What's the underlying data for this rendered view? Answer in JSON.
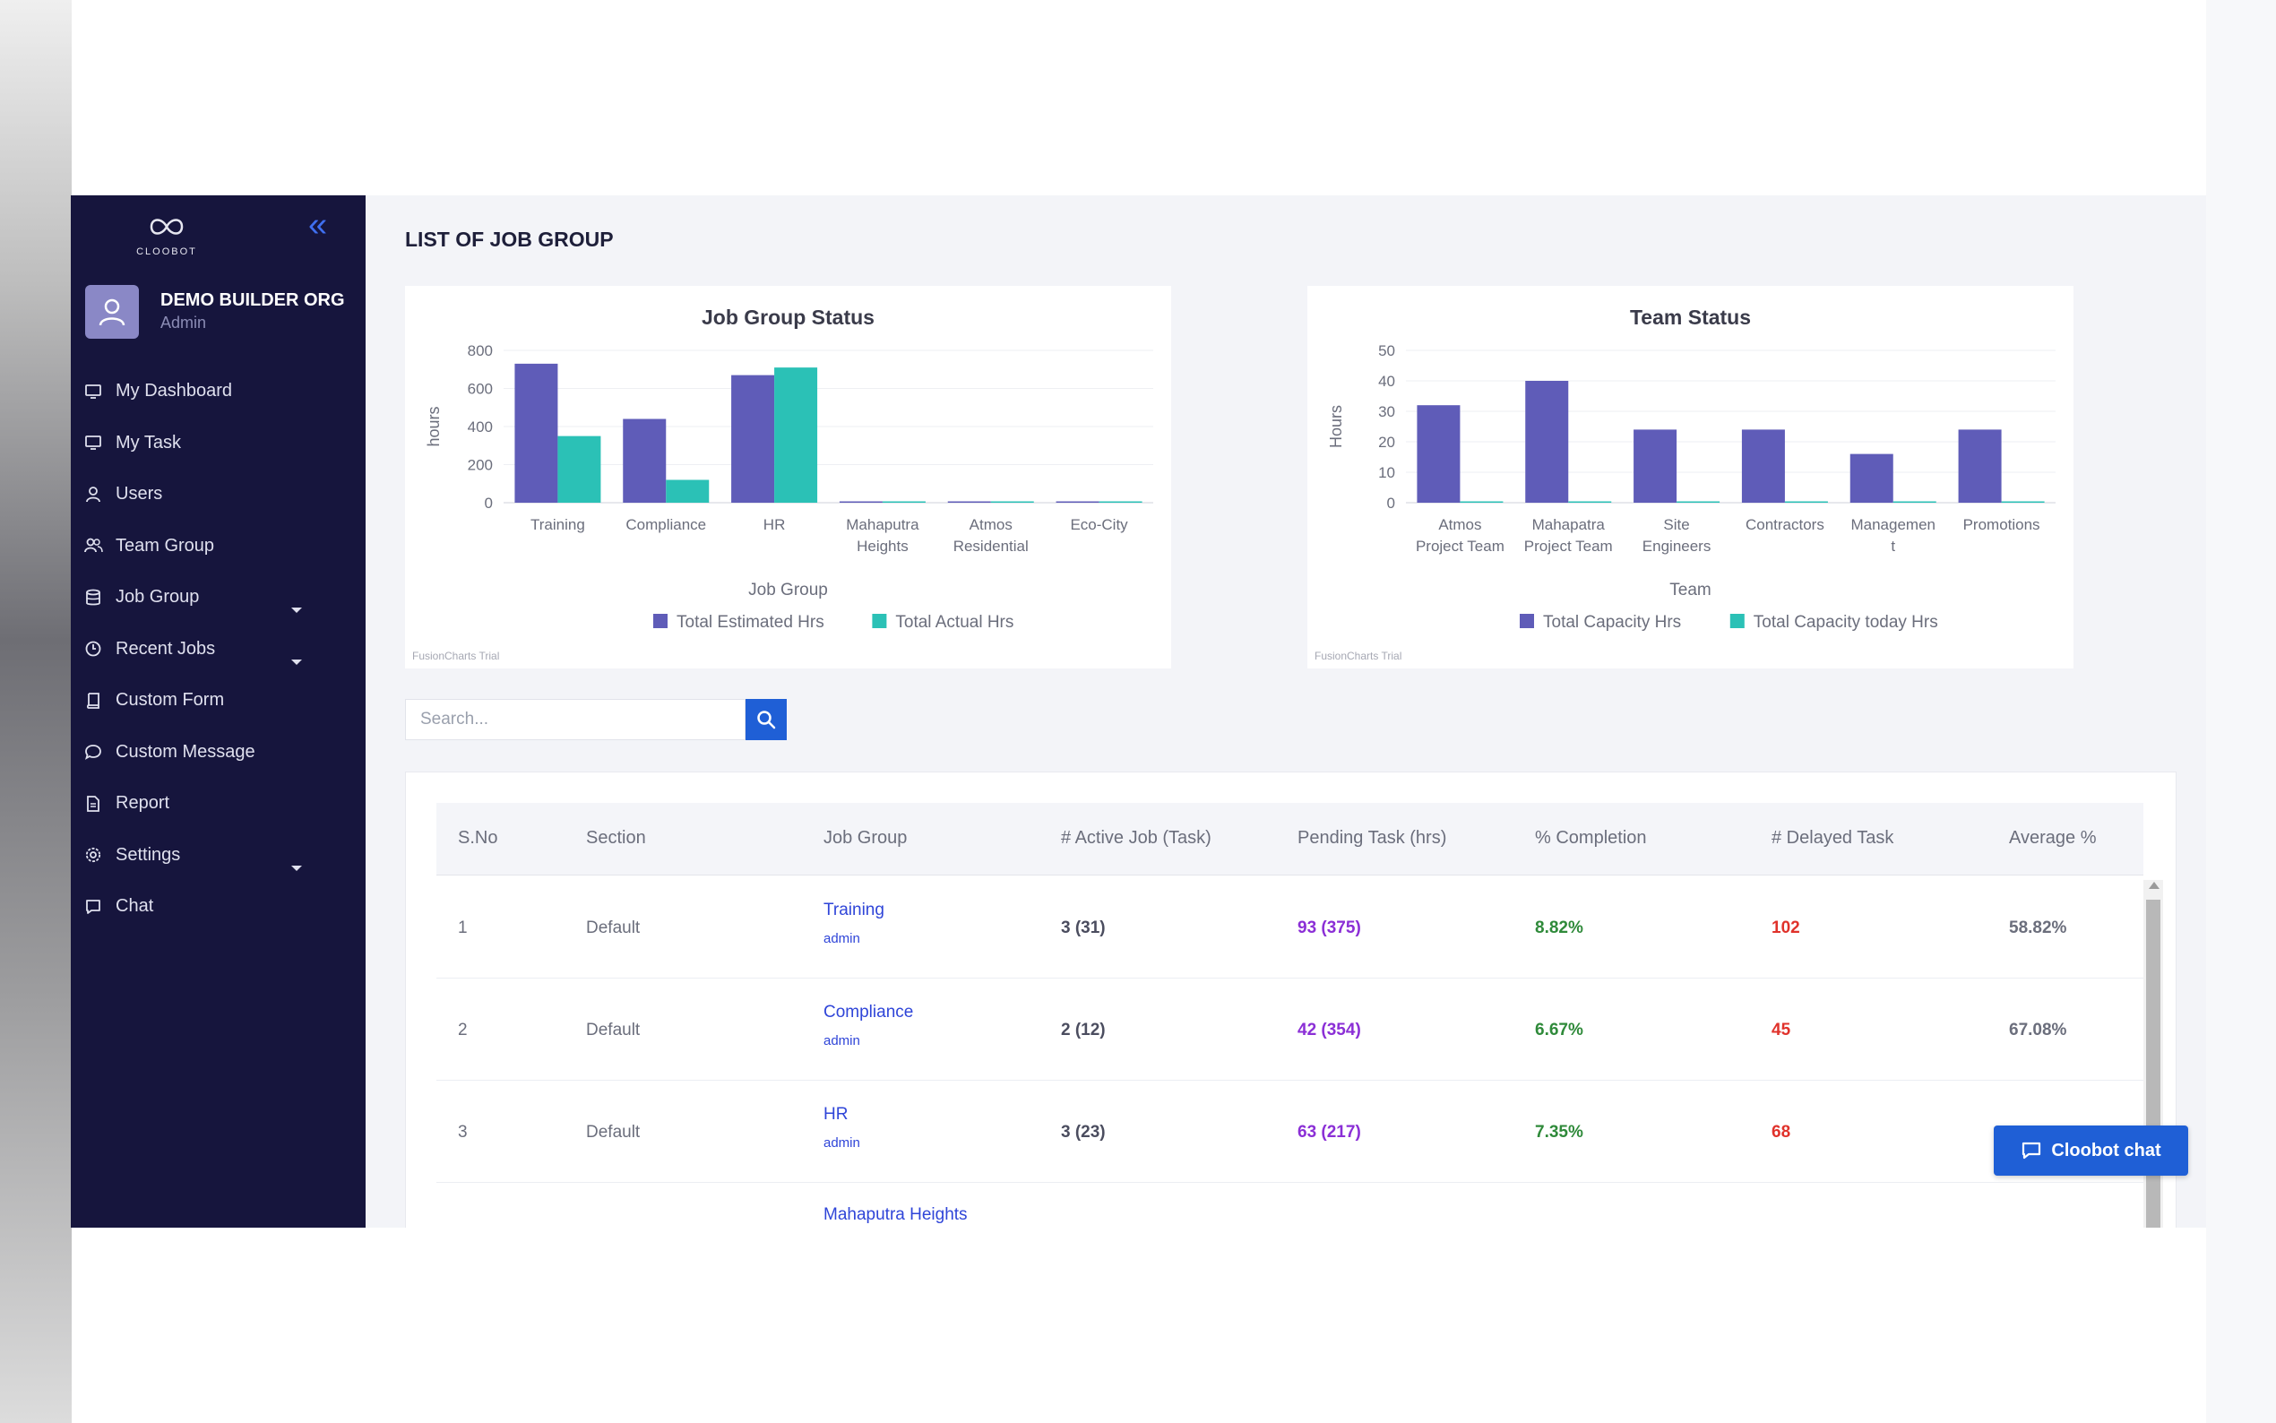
{
  "sidebar": {
    "logo_text": "CLOOBOT",
    "org_name": "DEMO BUILDER ORG",
    "role": "Admin",
    "items": [
      {
        "label": "My Dashboard",
        "icon": "monitor-icon"
      },
      {
        "label": "My Task",
        "icon": "monitor-icon"
      },
      {
        "label": "Users",
        "icon": "user-icon"
      },
      {
        "label": "Team Group",
        "icon": "users-icon"
      },
      {
        "label": "Job Group",
        "icon": "database-icon",
        "expandable": true
      },
      {
        "label": "Recent Jobs",
        "icon": "clock-icon",
        "expandable": true
      },
      {
        "label": "Custom Form",
        "icon": "book-icon"
      },
      {
        "label": "Custom Message",
        "icon": "message-icon"
      },
      {
        "label": "Report",
        "icon": "document-icon"
      },
      {
        "label": "Settings",
        "icon": "gear-icon",
        "expandable": true
      },
      {
        "label": "Chat",
        "icon": "chat-icon"
      }
    ]
  },
  "main": {
    "title": "LIST OF JOB GROUP",
    "search": {
      "placeholder": "Search...",
      "value": ""
    },
    "table": {
      "headers": [
        "S.No",
        "Section",
        "Job Group",
        "# Active Job (Task)",
        "Pending Task (hrs)",
        "% Completion",
        "# Delayed Task",
        "Average %"
      ],
      "rows": [
        {
          "sno": "1",
          "section": "Default",
          "job_group": "Training",
          "owner": "admin",
          "active": "3 (31)",
          "pending": "93 (375)",
          "completion": "8.82%",
          "delayed": "102",
          "average": "58.82%"
        },
        {
          "sno": "2",
          "section": "Default",
          "job_group": "Compliance",
          "owner": "admin",
          "active": "2 (12)",
          "pending": "42 (354)",
          "completion": "6.67%",
          "delayed": "45",
          "average": "67.08%"
        },
        {
          "sno": "3",
          "section": "Default",
          "job_group": "HR",
          "owner": "admin",
          "active": "3 (23)",
          "pending": "63 (217)",
          "completion": "7.35%",
          "delayed": "68",
          "average": ""
        },
        {
          "sno": "",
          "section": "",
          "job_group": "Mahaputra Heights",
          "owner": "",
          "active": "",
          "pending": "",
          "completion": "",
          "delayed": "",
          "average": ""
        }
      ]
    }
  },
  "chat_button": {
    "label": "Cloobot chat"
  },
  "colors": {
    "sidebar": "#16153d",
    "accent": "#1f5fd6",
    "series1": "#5f5cb8",
    "series2": "#2bc1b6"
  },
  "chart_data": [
    {
      "type": "bar",
      "title": "Job Group Status",
      "xlabel": "Job Group",
      "ylabel": "hours",
      "ylim": [
        0,
        800
      ],
      "yticks": [
        "0",
        "200",
        "400",
        "600",
        "800"
      ],
      "categories": [
        [
          "Training"
        ],
        [
          "Compliance"
        ],
        [
          "HR"
        ],
        [
          "Mahaputra",
          "Heights"
        ],
        [
          "Atmos",
          "Residential"
        ],
        [
          "Eco-City"
        ]
      ],
      "series": [
        {
          "name": "Total Estimated Hrs",
          "color": "#5f5cb8",
          "values": [
            730,
            440,
            670,
            0,
            0,
            0
          ]
        },
        {
          "name": "Total Actual Hrs",
          "color": "#2bc1b6",
          "values": [
            350,
            120,
            710,
            0,
            0,
            0
          ]
        }
      ],
      "credit": "FusionCharts Trial"
    },
    {
      "type": "bar",
      "title": "Team Status",
      "xlabel": "Team",
      "ylabel": "Hours",
      "ylim": [
        0,
        50
      ],
      "yticks": [
        "0",
        "10",
        "20",
        "30",
        "40",
        "50"
      ],
      "categories": [
        [
          "Atmos",
          "Project Team"
        ],
        [
          "Mahapatra",
          "Project Team"
        ],
        [
          "Site",
          "Engineers"
        ],
        [
          "Contractors"
        ],
        [
          "Managemen",
          "t"
        ],
        [
          "Promotions"
        ]
      ],
      "series": [
        {
          "name": "Total Capacity Hrs",
          "color": "#5f5cb8",
          "values": [
            32,
            40,
            24,
            24,
            16,
            24
          ]
        },
        {
          "name": "Total Capacity today Hrs",
          "color": "#2bc1b6",
          "values": [
            0,
            0,
            0,
            0,
            0,
            0
          ]
        }
      ],
      "credit": "FusionCharts Trial"
    }
  ]
}
